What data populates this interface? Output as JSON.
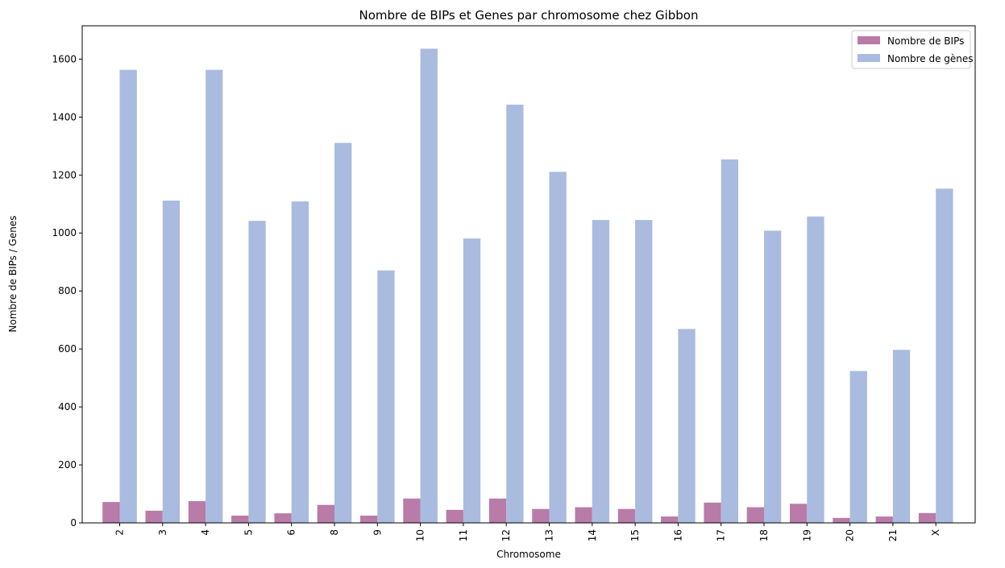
{
  "chart_data": {
    "type": "bar",
    "title": "Nombre de BIPs et Genes par chromosome chez Gibbon",
    "xlabel": "Chromosome",
    "ylabel": "Nombre de BIPs / Genes",
    "categories": [
      "2",
      "3",
      "4",
      "5",
      "6",
      "8",
      "9",
      "10",
      "11",
      "12",
      "13",
      "14",
      "15",
      "16",
      "17",
      "18",
      "19",
      "20",
      "21",
      "X"
    ],
    "series": [
      {
        "name": "Nombre de BIPs",
        "color": "#b97ba8",
        "values": [
          72,
          42,
          75,
          25,
          33,
          62,
          25,
          84,
          45,
          84,
          48,
          54,
          48,
          22,
          70,
          54,
          66,
          17,
          22,
          34
        ]
      },
      {
        "name": "Nombre de gènes",
        "color": "#aabbe0",
        "values": [
          1563,
          1112,
          1563,
          1042,
          1109,
          1311,
          871,
          1636,
          981,
          1443,
          1211,
          1045,
          1045,
          669,
          1254,
          1008,
          1057,
          524,
          597,
          1153
        ]
      }
    ],
    "ylim": [
      0,
      1715
    ],
    "yticks": [
      0,
      200,
      400,
      600,
      800,
      1000,
      1200,
      1400,
      1600
    ],
    "grid": false,
    "legend_position": "top-right"
  }
}
